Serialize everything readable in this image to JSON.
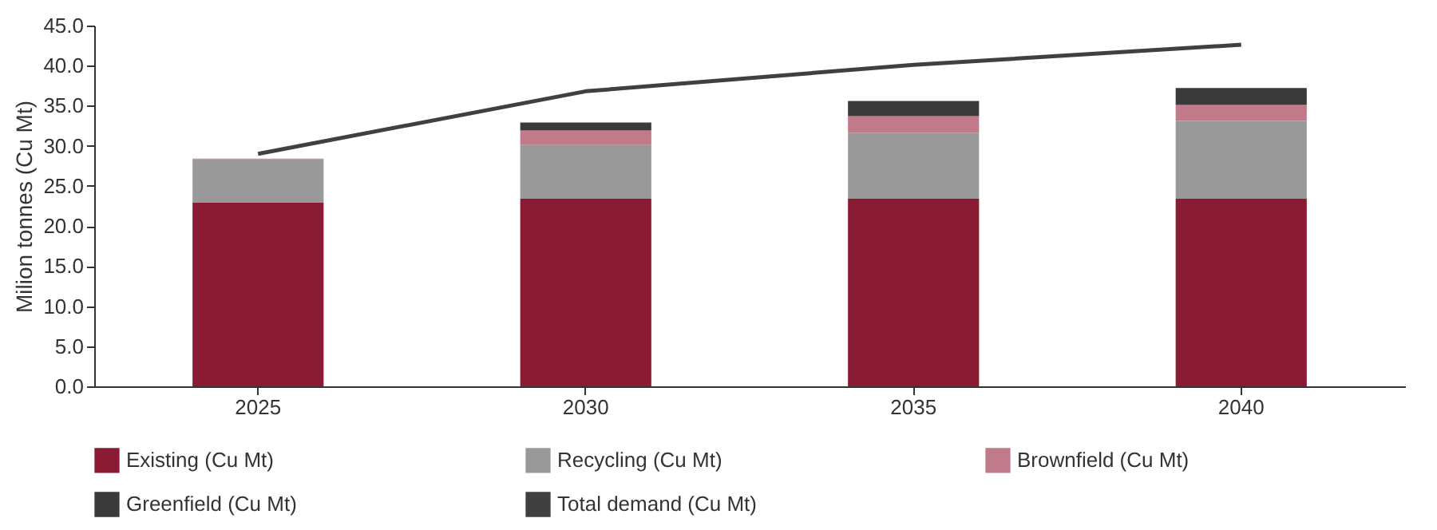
{
  "chart_data": {
    "type": "bar",
    "stacked": true,
    "ylabel": "Milion tonnes (Cu Mt)",
    "categories": [
      "2025",
      "2030",
      "2035",
      "2040"
    ],
    "series": [
      {
        "name": "Existing (Cu Mt)",
        "color": "#8b1a33",
        "values": [
          22.9,
          23.4,
          23.4,
          23.4
        ]
      },
      {
        "name": "Recycling (Cu Mt)",
        "color": "#999999",
        "values": [
          5.4,
          6.7,
          8.2,
          9.7
        ]
      },
      {
        "name": "Brownfield (Cu Mt)",
        "color": "#c07a8a",
        "values": [
          0.1,
          1.8,
          2.1,
          2.0
        ]
      },
      {
        "name": "Greenfield (Cu Mt)",
        "color": "#3a3a3a",
        "values": [
          0,
          1.0,
          1.9,
          2.1
        ]
      },
      {
        "name": "Total demand (Cu Mt)",
        "type": "line",
        "color": "#404040",
        "values": [
          29.0,
          36.8,
          40.1,
          42.6
        ]
      }
    ],
    "ylim": [
      0,
      45
    ],
    "yticks": [
      {
        "value": 0,
        "label": "0.0"
      },
      {
        "value": 5,
        "label": "5.0"
      },
      {
        "value": 10,
        "label": "10.0"
      },
      {
        "value": 15,
        "label": "15.0"
      },
      {
        "value": 20,
        "label": "20.0"
      },
      {
        "value": 25,
        "label": "25.0"
      },
      {
        "value": 30,
        "label": "30.0"
      },
      {
        "value": 35,
        "label": "35.0"
      },
      {
        "value": 40,
        "label": "40.0"
      },
      {
        "value": 45,
        "label": "45.0"
      }
    ],
    "grid": false,
    "legend": "bottom",
    "marker": "none"
  }
}
